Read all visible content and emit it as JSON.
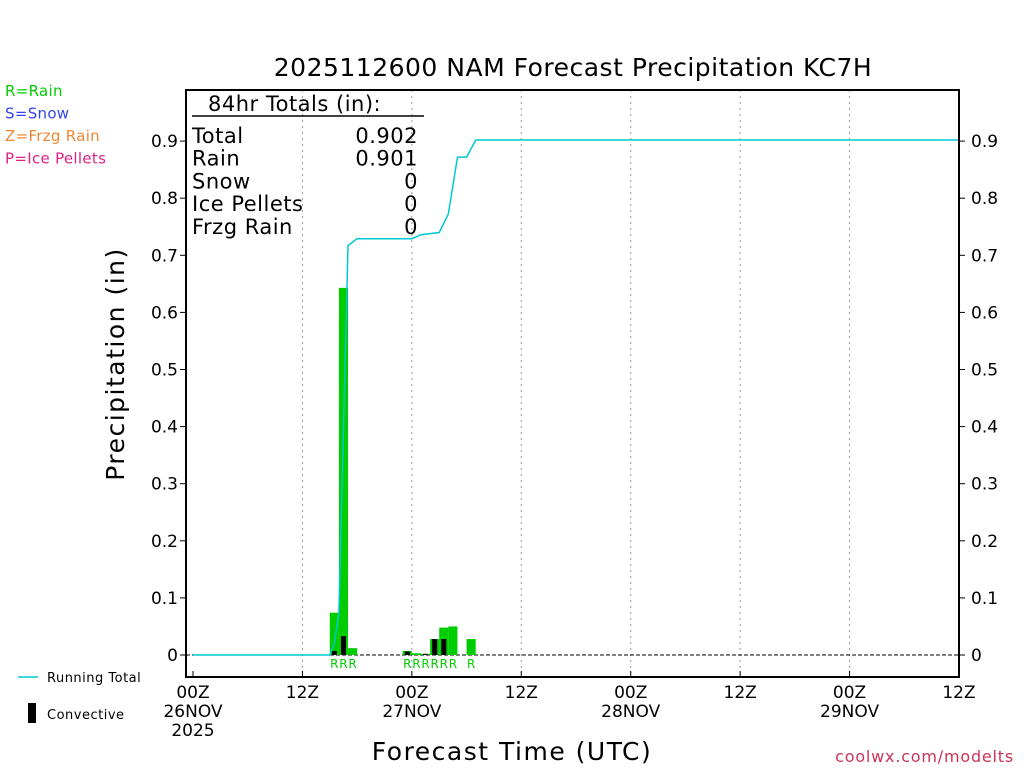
{
  "chart_data": {
    "type": "bar",
    "title": "2025112600 NAM Forecast Precipitation KC7H",
    "xlabel": "Forecast Time (UTC)",
    "ylabel": "Precipitation (in)",
    "ylim": [
      -0.04,
      1.0
    ],
    "xlim_hours": [
      0,
      84
    ],
    "x_ticks": [
      {
        "hour": 0,
        "lines": [
          "00Z",
          "26NOV",
          "2025"
        ]
      },
      {
        "hour": 12,
        "lines": [
          "12Z"
        ]
      },
      {
        "hour": 24,
        "lines": [
          "00Z",
          "27NOV"
        ]
      },
      {
        "hour": 36,
        "lines": [
          "12Z"
        ]
      },
      {
        "hour": 48,
        "lines": [
          "00Z",
          "28NOV"
        ]
      },
      {
        "hour": 60,
        "lines": [
          "12Z"
        ]
      },
      {
        "hour": 72,
        "lines": [
          "00Z",
          "29NOV"
        ]
      },
      {
        "hour": 84,
        "lines": [
          "12Z"
        ]
      }
    ],
    "y_ticks": [
      "0",
      "0.1",
      "0.2",
      "0.3",
      "0.4",
      "0.5",
      "0.6",
      "0.7",
      "0.8",
      "0.9"
    ],
    "y_tick_values": [
      0,
      0.1,
      0.2,
      0.3,
      0.4,
      0.5,
      0.6,
      0.7,
      0.8,
      0.9
    ],
    "grid": "vertical dotted at 12Z and 00Z",
    "series": [
      {
        "name": "Rain",
        "color": "#00cc00",
        "hours": [
          16,
          17,
          18,
          24,
          25,
          26,
          27,
          28,
          29,
          31
        ],
        "values": [
          0.074,
          0.643,
          0.012,
          0.007,
          0.003,
          0.002,
          0.028,
          0.048,
          0.05,
          0.028
        ]
      },
      {
        "name": "Convective",
        "color": "#000000",
        "hours": [
          16,
          17,
          18,
          24,
          25,
          26,
          27,
          28,
          29,
          31
        ],
        "values": [
          0.007,
          0.033,
          0.0,
          0.006,
          0.0,
          0.002,
          0.028,
          0.028,
          0.0,
          0.0
        ]
      },
      {
        "name": "Running Total",
        "color": "#00c8d2",
        "hours": [
          0,
          15,
          15.5,
          16,
          17,
          18,
          24,
          25,
          26,
          27,
          28,
          29,
          30,
          31,
          84
        ],
        "values": [
          0,
          0,
          0.02,
          0.074,
          0.717,
          0.729,
          0.729,
          0.736,
          0.738,
          0.74,
          0.772,
          0.872,
          0.872,
          0.902,
          0.902
        ]
      }
    ],
    "ptype_markers": [
      {
        "hour": 16,
        "label": "R"
      },
      {
        "hour": 17,
        "label": "R"
      },
      {
        "hour": 18,
        "label": "R"
      },
      {
        "hour": 24,
        "label": "R"
      },
      {
        "hour": 25,
        "label": "R"
      },
      {
        "hour": 26,
        "label": "R"
      },
      {
        "hour": 27,
        "label": "R"
      },
      {
        "hour": 28,
        "label": "R"
      },
      {
        "hour": 29,
        "label": "R"
      },
      {
        "hour": 31,
        "label": "R"
      }
    ],
    "totals_box": {
      "heading": "84hr Totals (in):",
      "rows": [
        {
          "label": "Total",
          "value": "0.902"
        },
        {
          "label": "Rain",
          "value": "0.901"
        },
        {
          "label": "Snow",
          "value": "0"
        },
        {
          "label": "Ice Pellets",
          "value": "0"
        },
        {
          "label": "Frzg Rain",
          "value": "0"
        }
      ]
    },
    "ptype_legend": [
      {
        "text": "R=Rain",
        "color": "#00cc00"
      },
      {
        "text": "S=Snow",
        "color": "#3344ee"
      },
      {
        "text": "Z=Frzg Rain",
        "color": "#ee8833"
      },
      {
        "text": "P=Ice Pellets",
        "color": "#dd2288"
      }
    ],
    "series_legend": {
      "running_total": "Running Total",
      "convective": "Convective"
    },
    "credit": "coolwx.com/modelts"
  }
}
